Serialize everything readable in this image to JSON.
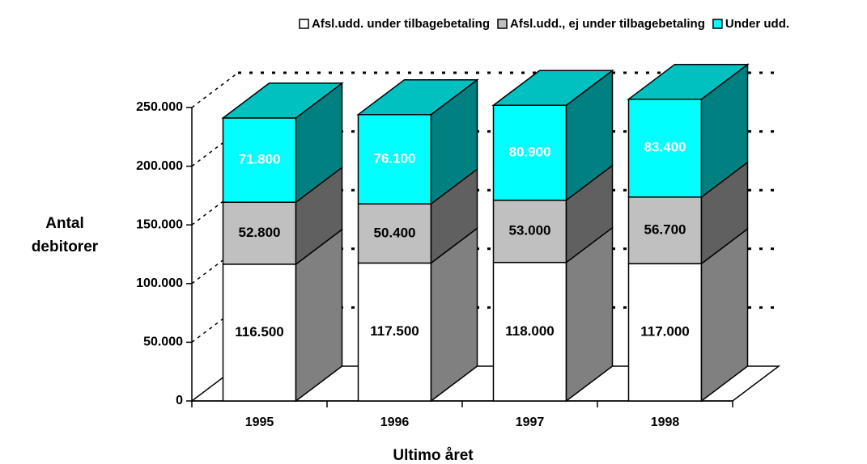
{
  "chart_data": {
    "type": "bar3d_stacked",
    "x_label": "Ultimo året",
    "y_label": "Antal debitorer",
    "categories": [
      "1995",
      "1996",
      "1997",
      "1998"
    ],
    "series": [
      {
        "name": "Afsl.udd. under tilbagebetaling",
        "color": "#ffffff",
        "side_color": "#808080",
        "label_color": "#000000",
        "values": [
          116500,
          117500,
          118000,
          117000
        ],
        "value_labels": [
          "116.500",
          "117.500",
          "118.000",
          "117.000"
        ]
      },
      {
        "name": "Afsl.udd., ej under tilbagebetaling",
        "color": "#c0c0c0",
        "side_color": "#606060",
        "label_color": "#000000",
        "values": [
          52800,
          50400,
          53000,
          56700
        ],
        "value_labels": [
          "52.800",
          "50.400",
          "53.000",
          "56.700"
        ]
      },
      {
        "name": "Under udd.",
        "color": "#00ffff",
        "side_color": "#008080",
        "top_color": "#00c0c0",
        "label_color": "#ffffff",
        "values": [
          71800,
          76100,
          80900,
          83400
        ],
        "value_labels": [
          "71.800",
          "76.100",
          "80.900",
          "83.400"
        ]
      }
    ],
    "ylim": [
      0,
      250000
    ],
    "yticks": [
      0,
      {
        "value": 50000,
        "label": "50.000"
      },
      {
        "value": 100000,
        "label": "100.000"
      },
      {
        "value": 150000,
        "label": "150.000"
      },
      {
        "value": 200000,
        "label": "200.000"
      },
      {
        "value": 250000,
        "label": "250.000"
      }
    ],
    "grid": true,
    "legend": "top"
  }
}
